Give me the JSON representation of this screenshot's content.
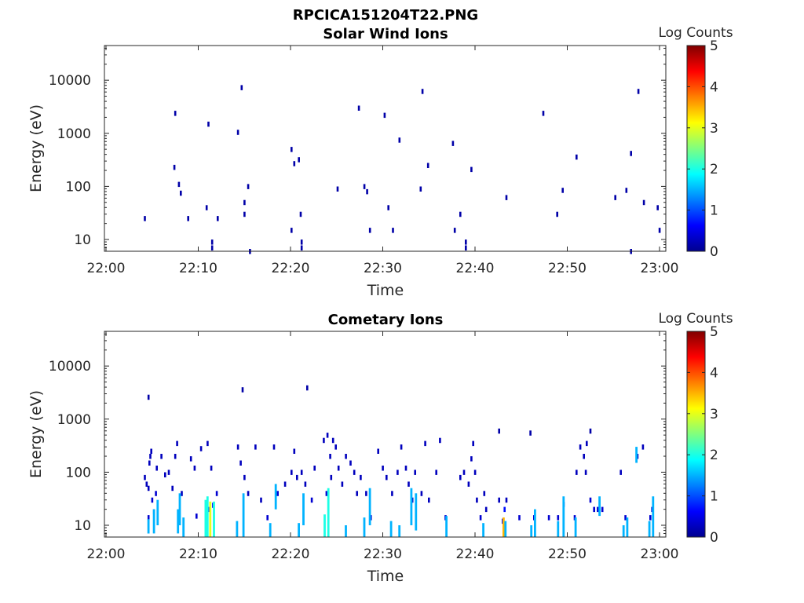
{
  "figure_title": "RPCICA151204T22.PNG",
  "chart_data": [
    {
      "type": "heatmap",
      "title": "Solar Wind Ions",
      "xlabel": "Time",
      "ylabel": "Energy (eV)",
      "y_scale": "log",
      "x_ticks": [
        "22:00",
        "22:10",
        "22:20",
        "22:30",
        "22:40",
        "22:50",
        "23:00"
      ],
      "x_range_minutes": [
        0,
        60
      ],
      "y_ticks": [
        {
          "value": 10,
          "label": "10"
        },
        {
          "value": 100,
          "label": "100"
        },
        {
          "value": 1000,
          "label": "1000"
        },
        {
          "value": 10000,
          "label": "10000"
        }
      ],
      "ylim": [
        6,
        45000
      ],
      "colorbar": {
        "label": "Log Counts",
        "min": 0,
        "max": 5,
        "ticks": [
          "0",
          "1",
          "2",
          "3",
          "4",
          "5"
        ],
        "colormap": "jet"
      },
      "cells": [
        {
          "t": 4.2,
          "e": 25,
          "c": 0.2
        },
        {
          "t": 7.4,
          "e": 230,
          "c": 0.2
        },
        {
          "t": 7.5,
          "e": 2400,
          "c": 0.2
        },
        {
          "t": 7.9,
          "e": 110,
          "c": 0.2
        },
        {
          "t": 8.1,
          "e": 75,
          "c": 0.2
        },
        {
          "t": 8.9,
          "e": 25,
          "c": 0.2
        },
        {
          "t": 10.9,
          "e": 40,
          "c": 0.2
        },
        {
          "t": 11.1,
          "e": 1500,
          "c": 0.2
        },
        {
          "t": 11.5,
          "e": 9,
          "c": 0.2
        },
        {
          "t": 11.5,
          "e": 7,
          "c": 0.2
        },
        {
          "t": 12.1,
          "e": 25,
          "c": 0.2
        },
        {
          "t": 14.3,
          "e": 1050,
          "c": 0.2
        },
        {
          "t": 14.7,
          "e": 7300,
          "c": 0.2
        },
        {
          "t": 15.0,
          "e": 50,
          "c": 0.2
        },
        {
          "t": 15.0,
          "e": 30,
          "c": 0.2
        },
        {
          "t": 15.4,
          "e": 100,
          "c": 0.2
        },
        {
          "t": 15.6,
          "e": 6,
          "c": 0.2
        },
        {
          "t": 20.1,
          "e": 500,
          "c": 0.2
        },
        {
          "t": 20.1,
          "e": 15,
          "c": 0.2
        },
        {
          "t": 20.4,
          "e": 270,
          "c": 0.2
        },
        {
          "t": 20.9,
          "e": 320,
          "c": 0.2
        },
        {
          "t": 21.1,
          "e": 30,
          "c": 0.2
        },
        {
          "t": 21.2,
          "e": 9,
          "c": 0.2
        },
        {
          "t": 21.2,
          "e": 7,
          "c": 0.2
        },
        {
          "t": 25.1,
          "e": 90,
          "c": 0.2
        },
        {
          "t": 27.4,
          "e": 3000,
          "c": 0.2
        },
        {
          "t": 28.0,
          "e": 100,
          "c": 0.2
        },
        {
          "t": 28.3,
          "e": 80,
          "c": 0.2
        },
        {
          "t": 28.6,
          "e": 15,
          "c": 0.2
        },
        {
          "t": 30.2,
          "e": 2200,
          "c": 0.2
        },
        {
          "t": 30.6,
          "e": 40,
          "c": 0.2
        },
        {
          "t": 31.1,
          "e": 15,
          "c": 0.2
        },
        {
          "t": 31.8,
          "e": 750,
          "c": 0.2
        },
        {
          "t": 34.1,
          "e": 90,
          "c": 0.2
        },
        {
          "t": 34.3,
          "e": 6200,
          "c": 0.2
        },
        {
          "t": 34.9,
          "e": 250,
          "c": 0.2
        },
        {
          "t": 37.6,
          "e": 650,
          "c": 0.2
        },
        {
          "t": 37.8,
          "e": 15,
          "c": 0.2
        },
        {
          "t": 38.4,
          "e": 30,
          "c": 0.2
        },
        {
          "t": 39.0,
          "e": 9,
          "c": 0.2
        },
        {
          "t": 39.0,
          "e": 7,
          "c": 0.2
        },
        {
          "t": 39.6,
          "e": 210,
          "c": 0.2
        },
        {
          "t": 43.4,
          "e": 62,
          "c": 0.2
        },
        {
          "t": 47.4,
          "e": 2400,
          "c": 0.2
        },
        {
          "t": 48.9,
          "e": 30,
          "c": 0.2
        },
        {
          "t": 49.5,
          "e": 85,
          "c": 0.2
        },
        {
          "t": 51.0,
          "e": 360,
          "c": 0.2
        },
        {
          "t": 55.2,
          "e": 62,
          "c": 0.2
        },
        {
          "t": 56.4,
          "e": 85,
          "c": 0.2
        },
        {
          "t": 56.9,
          "e": 420,
          "c": 0.2
        },
        {
          "t": 56.9,
          "e": 6,
          "c": 0.2
        },
        {
          "t": 57.7,
          "e": 6200,
          "c": 0.2
        },
        {
          "t": 58.3,
          "e": 50,
          "c": 0.2
        },
        {
          "t": 59.8,
          "e": 40,
          "c": 0.2
        },
        {
          "t": 60.0,
          "e": 15,
          "c": 0.2
        }
      ]
    },
    {
      "type": "heatmap",
      "title": "Cometary Ions",
      "xlabel": "Time",
      "ylabel": "Energy (eV)",
      "y_scale": "log",
      "x_ticks": [
        "22:00",
        "22:10",
        "22:20",
        "22:30",
        "22:40",
        "22:50",
        "23:00"
      ],
      "x_range_minutes": [
        0,
        60
      ],
      "y_ticks": [
        {
          "value": 10,
          "label": "10"
        },
        {
          "value": 100,
          "label": "100"
        },
        {
          "value": 1000,
          "label": "1000"
        },
        {
          "value": 10000,
          "label": "10000"
        }
      ],
      "ylim": [
        6,
        45000
      ],
      "colorbar": {
        "label": "Log Counts",
        "min": 0,
        "max": 5,
        "ticks": [
          "0",
          "1",
          "2",
          "3",
          "4",
          "5"
        ],
        "colormap": "jet"
      },
      "cells": [
        {
          "t": 4.6,
          "e": 2600,
          "c": 0.2
        },
        {
          "t": 14.8,
          "e": 3600,
          "c": 0.2
        },
        {
          "t": 21.8,
          "e": 3900,
          "c": 0.2
        },
        {
          "t": 42.6,
          "e": 600,
          "c": 0.2
        },
        {
          "t": 46.0,
          "e": 550,
          "c": 0.2
        },
        {
          "t": 52.5,
          "e": 600,
          "c": 0.2
        },
        {
          "t": 4.2,
          "e": 80,
          "c": 0.3
        },
        {
          "t": 4.4,
          "e": 60,
          "c": 0.3
        },
        {
          "t": 4.6,
          "e": 50,
          "c": 0.3
        },
        {
          "t": 4.8,
          "e": 200,
          "c": 0.3
        },
        {
          "t": 4.9,
          "e": 250,
          "c": 0.3
        },
        {
          "t": 4.7,
          "e": 150,
          "c": 0.3
        },
        {
          "t": 4.6,
          "e": 14,
          "c": 0.4
        },
        {
          "t": 5.0,
          "e": 30,
          "c": 0.4
        },
        {
          "t": 5.2,
          "e": 18,
          "c": 0.4
        },
        {
          "t": 5.4,
          "e": 40,
          "c": 0.4
        },
        {
          "t": 5.5,
          "e": 120,
          "c": 0.3
        },
        {
          "t": 6.0,
          "e": 200,
          "c": 0.3
        },
        {
          "t": 6.4,
          "e": 90,
          "c": 0.3
        },
        {
          "t": 6.8,
          "e": 100,
          "c": 0.3
        },
        {
          "t": 7.2,
          "e": 50,
          "c": 0.3
        },
        {
          "t": 7.5,
          "e": 200,
          "c": 0.3
        },
        {
          "t": 7.7,
          "e": 350,
          "c": 0.3
        },
        {
          "t": 8.2,
          "e": 40,
          "c": 0.3
        },
        {
          "t": 9.2,
          "e": 180,
          "c": 0.3
        },
        {
          "t": 9.6,
          "e": 120,
          "c": 0.3
        },
        {
          "t": 9.8,
          "e": 15,
          "c": 0.4
        },
        {
          "t": 10.3,
          "e": 280,
          "c": 0.3
        },
        {
          "t": 11.0,
          "e": 350,
          "c": 0.3
        },
        {
          "t": 11.4,
          "e": 120,
          "c": 0.3
        },
        {
          "t": 11.2,
          "e": 20,
          "c": 0.6
        },
        {
          "t": 11.6,
          "e": 24,
          "c": 0.6
        },
        {
          "t": 12.0,
          "e": 40,
          "c": 0.4
        },
        {
          "t": 14.3,
          "e": 300,
          "c": 0.3
        },
        {
          "t": 14.6,
          "e": 150,
          "c": 0.3
        },
        {
          "t": 15.0,
          "e": 80,
          "c": 0.3
        },
        {
          "t": 15.4,
          "e": 40,
          "c": 0.3
        },
        {
          "t": 16.2,
          "e": 300,
          "c": 0.3
        },
        {
          "t": 16.8,
          "e": 30,
          "c": 0.3
        },
        {
          "t": 17.5,
          "e": 14,
          "c": 0.4
        },
        {
          "t": 18.2,
          "e": 300,
          "c": 0.3
        },
        {
          "t": 18.6,
          "e": 40,
          "c": 0.4
        },
        {
          "t": 19.4,
          "e": 60,
          "c": 0.3
        },
        {
          "t": 20.1,
          "e": 100,
          "c": 0.3
        },
        {
          "t": 20.4,
          "e": 250,
          "c": 0.3
        },
        {
          "t": 20.7,
          "e": 80,
          "c": 0.3
        },
        {
          "t": 21.2,
          "e": 100,
          "c": 0.3
        },
        {
          "t": 21.6,
          "e": 60,
          "c": 0.3
        },
        {
          "t": 22.3,
          "e": 30,
          "c": 0.4
        },
        {
          "t": 22.6,
          "e": 120,
          "c": 0.3
        },
        {
          "t": 23.6,
          "e": 400,
          "c": 0.3
        },
        {
          "t": 24.0,
          "e": 500,
          "c": 0.3
        },
        {
          "t": 24.3,
          "e": 200,
          "c": 0.3
        },
        {
          "t": 24.6,
          "e": 400,
          "c": 0.3
        },
        {
          "t": 24.9,
          "e": 300,
          "c": 0.3
        },
        {
          "t": 23.9,
          "e": 40,
          "c": 0.4
        },
        {
          "t": 24.4,
          "e": 80,
          "c": 0.3
        },
        {
          "t": 25.2,
          "e": 120,
          "c": 0.3
        },
        {
          "t": 25.6,
          "e": 60,
          "c": 0.3
        },
        {
          "t": 26.0,
          "e": 200,
          "c": 0.3
        },
        {
          "t": 26.5,
          "e": 150,
          "c": 0.3
        },
        {
          "t": 26.9,
          "e": 100,
          "c": 0.3
        },
        {
          "t": 27.2,
          "e": 40,
          "c": 0.3
        },
        {
          "t": 27.6,
          "e": 80,
          "c": 0.3
        },
        {
          "t": 28.2,
          "e": 40,
          "c": 0.3
        },
        {
          "t": 28.7,
          "e": 14,
          "c": 0.4
        },
        {
          "t": 29.5,
          "e": 250,
          "c": 0.3
        },
        {
          "t": 30.0,
          "e": 120,
          "c": 0.3
        },
        {
          "t": 30.4,
          "e": 80,
          "c": 0.3
        },
        {
          "t": 31.0,
          "e": 40,
          "c": 0.3
        },
        {
          "t": 31.6,
          "e": 100,
          "c": 0.3
        },
        {
          "t": 32.0,
          "e": 300,
          "c": 0.3
        },
        {
          "t": 32.5,
          "e": 120,
          "c": 0.3
        },
        {
          "t": 32.8,
          "e": 60,
          "c": 0.3
        },
        {
          "t": 33.2,
          "e": 30,
          "c": 0.3
        },
        {
          "t": 33.5,
          "e": 100,
          "c": 0.3
        },
        {
          "t": 34.2,
          "e": 40,
          "c": 0.3
        },
        {
          "t": 34.6,
          "e": 350,
          "c": 0.3
        },
        {
          "t": 35.0,
          "e": 30,
          "c": 0.3
        },
        {
          "t": 35.8,
          "e": 100,
          "c": 0.3
        },
        {
          "t": 36.8,
          "e": 14,
          "c": 0.4
        },
        {
          "t": 36.2,
          "e": 400,
          "c": 0.3
        },
        {
          "t": 38.4,
          "e": 80,
          "c": 0.3
        },
        {
          "t": 38.8,
          "e": 100,
          "c": 0.3
        },
        {
          "t": 39.3,
          "e": 60,
          "c": 0.3
        },
        {
          "t": 39.6,
          "e": 180,
          "c": 0.3
        },
        {
          "t": 39.8,
          "e": 350,
          "c": 0.3
        },
        {
          "t": 40.0,
          "e": 100,
          "c": 0.3
        },
        {
          "t": 40.2,
          "e": 30,
          "c": 0.3
        },
        {
          "t": 40.6,
          "e": 14,
          "c": 0.4
        },
        {
          "t": 41.0,
          "e": 40,
          "c": 0.3
        },
        {
          "t": 41.2,
          "e": 20,
          "c": 0.3
        },
        {
          "t": 42.6,
          "e": 30,
          "c": 0.3
        },
        {
          "t": 43.0,
          "e": 12,
          "c": 0.7
        },
        {
          "t": 43.2,
          "e": 20,
          "c": 0.7
        },
        {
          "t": 43.4,
          "e": 30,
          "c": 0.3
        },
        {
          "t": 44.8,
          "e": 14,
          "c": 0.4
        },
        {
          "t": 46.4,
          "e": 14,
          "c": 0.4
        },
        {
          "t": 48.0,
          "e": 14,
          "c": 0.4
        },
        {
          "t": 49.0,
          "e": 14,
          "c": 0.4
        },
        {
          "t": 49.6,
          "e": 25,
          "c": 0.4
        },
        {
          "t": 50.8,
          "e": 14,
          "c": 0.4
        },
        {
          "t": 51.4,
          "e": 300,
          "c": 0.3
        },
        {
          "t": 51.8,
          "e": 200,
          "c": 0.3
        },
        {
          "t": 52.1,
          "e": 350,
          "c": 0.3
        },
        {
          "t": 52.5,
          "e": 30,
          "c": 0.4
        },
        {
          "t": 52.9,
          "e": 20,
          "c": 0.4
        },
        {
          "t": 53.3,
          "e": 20,
          "c": 0.4
        },
        {
          "t": 53.8,
          "e": 20,
          "c": 0.4
        },
        {
          "t": 52.0,
          "e": 100,
          "c": 0.3
        },
        {
          "t": 51.0,
          "e": 100,
          "c": 0.3
        },
        {
          "t": 55.8,
          "e": 100,
          "c": 0.3
        },
        {
          "t": 56.3,
          "e": 14,
          "c": 0.4
        },
        {
          "t": 57.6,
          "e": 200,
          "c": 0.3
        },
        {
          "t": 58.2,
          "e": 300,
          "c": 0.3
        },
        {
          "t": 59.0,
          "e": 14,
          "c": 0.4
        },
        {
          "t": 59.2,
          "e": 20,
          "c": 0.4
        }
      ],
      "streaks": [
        {
          "t": 4.6,
          "e0": 7,
          "e1": 13,
          "c": 0.3
        },
        {
          "t": 5.2,
          "e0": 7,
          "e1": 20,
          "c": 0.3
        },
        {
          "t": 5.6,
          "e0": 10,
          "e1": 30,
          "c": 0.3
        },
        {
          "t": 7.8,
          "e0": 7,
          "e1": 20,
          "c": 0.3
        },
        {
          "t": 8.0,
          "e0": 10,
          "e1": 40,
          "c": 0.3
        },
        {
          "t": 8.4,
          "e0": 6,
          "e1": 14,
          "c": 0.3
        },
        {
          "t": 10.8,
          "e0": 6,
          "e1": 30,
          "c": 0.4
        },
        {
          "t": 11.0,
          "e0": 6,
          "e1": 35,
          "c": 0.4
        },
        {
          "t": 11.3,
          "e0": 6,
          "e1": 28,
          "c": 0.6
        },
        {
          "t": 11.7,
          "e0": 6,
          "e1": 28,
          "c": 0.4
        },
        {
          "t": 14.2,
          "e0": 6,
          "e1": 12,
          "c": 0.3
        },
        {
          "t": 14.9,
          "e0": 6,
          "e1": 40,
          "c": 0.3
        },
        {
          "t": 17.8,
          "e0": 6,
          "e1": 11,
          "c": 0.3
        },
        {
          "t": 18.4,
          "e0": 20,
          "e1": 60,
          "c": 0.3
        },
        {
          "t": 20.9,
          "e0": 6,
          "e1": 11,
          "c": 0.3
        },
        {
          "t": 21.4,
          "e0": 10,
          "e1": 40,
          "c": 0.3
        },
        {
          "t": 23.7,
          "e0": 6,
          "e1": 16,
          "c": 0.4
        },
        {
          "t": 24.1,
          "e0": 6,
          "e1": 50,
          "c": 0.4
        },
        {
          "t": 26.0,
          "e0": 6,
          "e1": 10,
          "c": 0.3
        },
        {
          "t": 28.0,
          "e0": 6,
          "e1": 14,
          "c": 0.3
        },
        {
          "t": 28.6,
          "e0": 10,
          "e1": 50,
          "c": 0.3
        },
        {
          "t": 30.9,
          "e0": 6,
          "e1": 12,
          "c": 0.3
        },
        {
          "t": 31.8,
          "e0": 6,
          "e1": 10,
          "c": 0.3
        },
        {
          "t": 33.1,
          "e0": 10,
          "e1": 50,
          "c": 0.3
        },
        {
          "t": 33.6,
          "e0": 8,
          "e1": 40,
          "c": 0.3
        },
        {
          "t": 36.9,
          "e0": 6,
          "e1": 15,
          "c": 0.3
        },
        {
          "t": 40.9,
          "e0": 6,
          "e1": 11,
          "c": 0.3
        },
        {
          "t": 43.1,
          "e0": 6,
          "e1": 14,
          "c": 0.7
        },
        {
          "t": 43.3,
          "e0": 6,
          "e1": 12,
          "c": 0.3
        },
        {
          "t": 46.1,
          "e0": 6,
          "e1": 10,
          "c": 0.3
        },
        {
          "t": 46.5,
          "e0": 6,
          "e1": 20,
          "c": 0.3
        },
        {
          "t": 49.0,
          "e0": 6,
          "e1": 12,
          "c": 0.3
        },
        {
          "t": 49.6,
          "e0": 6,
          "e1": 35,
          "c": 0.3
        },
        {
          "t": 50.9,
          "e0": 6,
          "e1": 14,
          "c": 0.3
        },
        {
          "t": 53.5,
          "e0": 15,
          "e1": 35,
          "c": 0.3
        },
        {
          "t": 56.1,
          "e0": 6,
          "e1": 10,
          "c": 0.3
        },
        {
          "t": 56.5,
          "e0": 6,
          "e1": 14,
          "c": 0.3
        },
        {
          "t": 58.9,
          "e0": 6,
          "e1": 12,
          "c": 0.3
        },
        {
          "t": 59.3,
          "e0": 6,
          "e1": 35,
          "c": 0.3
        },
        {
          "t": 57.5,
          "e0": 150,
          "e1": 300,
          "c": 0.3
        }
      ]
    }
  ]
}
